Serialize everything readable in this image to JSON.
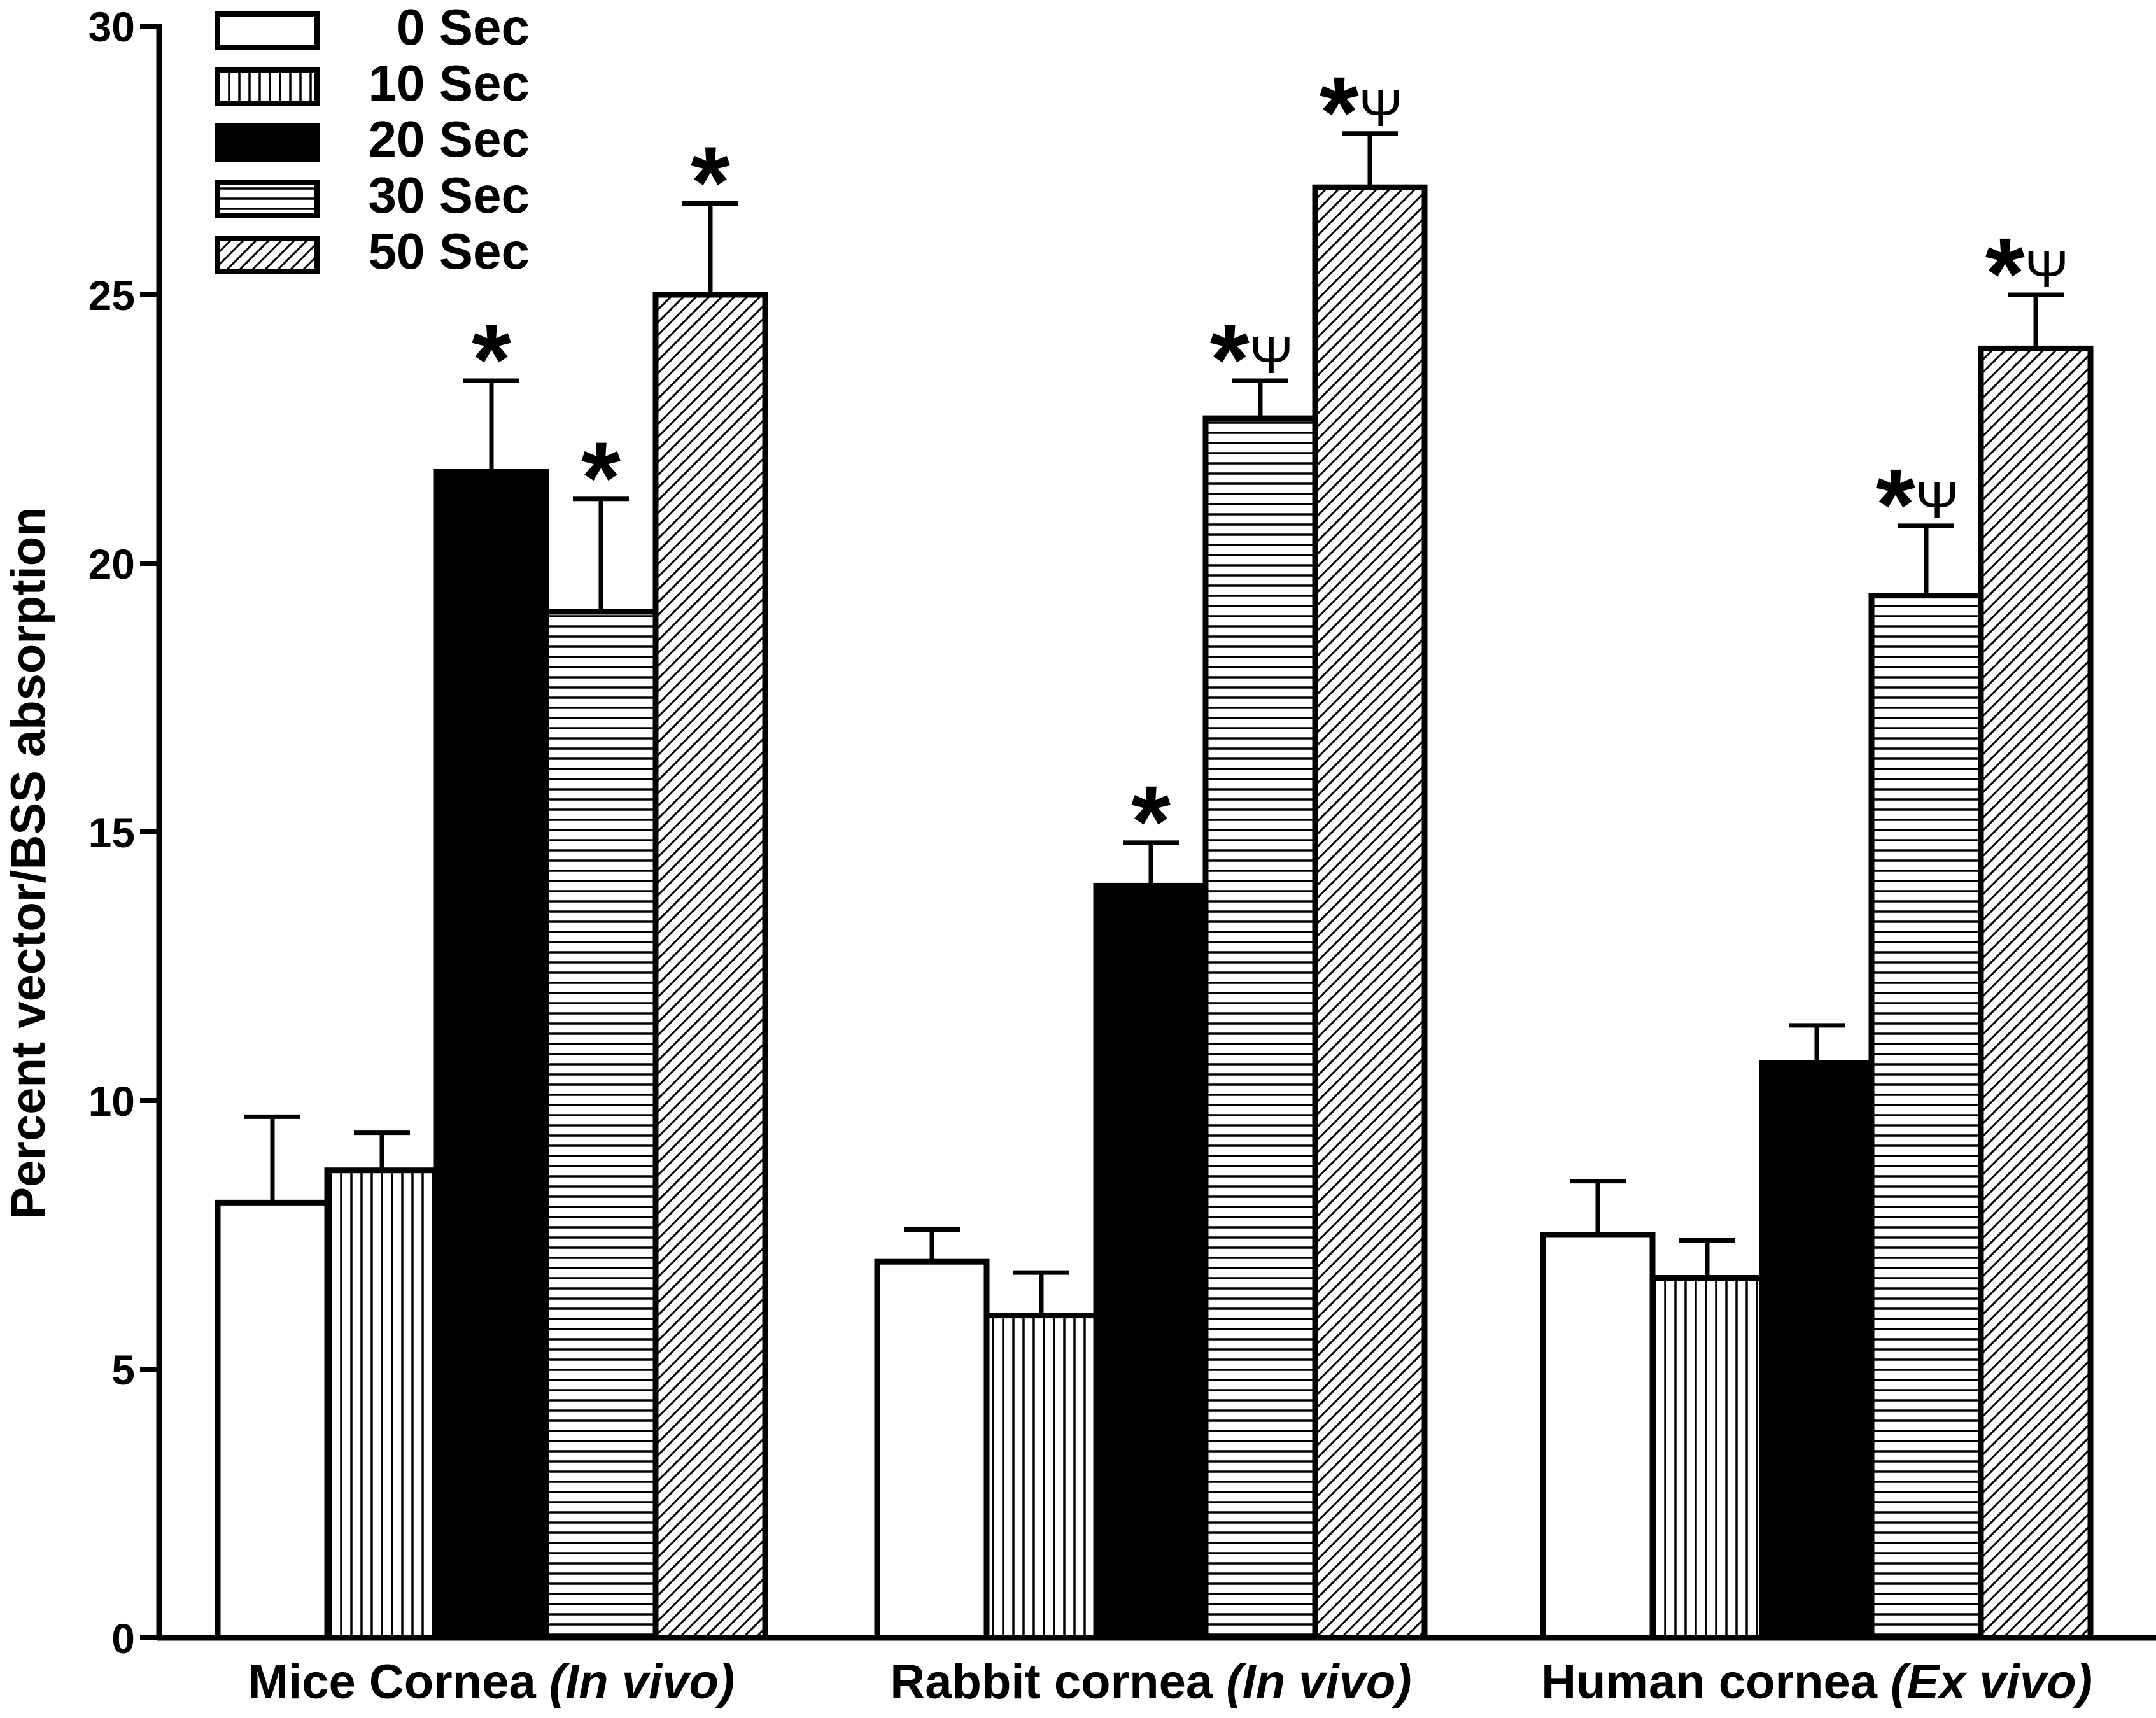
{
  "chart_data": {
    "type": "bar",
    "title": "",
    "xlabel": "",
    "ylabel": "Percent vector/BSS absorption",
    "ylim": [
      0,
      30
    ],
    "yticks": [
      "0",
      "5",
      "10",
      "15",
      "20",
      "25",
      "30"
    ],
    "grid": false,
    "legend_position": "top-left",
    "categories": [
      {
        "main": "Mice Cornea ",
        "italic": "(In vivo)"
      },
      {
        "main": "Rabbit cornea ",
        "italic": "(In vivo)"
      },
      {
        "main": "Human cornea ",
        "italic": "(Ex vivo)"
      }
    ],
    "series": [
      {
        "name": "0 Sec",
        "pattern": "open",
        "values": [
          8.1,
          7.0,
          7.5
        ],
        "errors": [
          1.6,
          0.6,
          1.0
        ],
        "annotations": [
          "",
          "",
          ""
        ]
      },
      {
        "name": "10 Sec",
        "pattern": "vertical-lines",
        "values": [
          8.7,
          6.0,
          6.7
        ],
        "errors": [
          0.7,
          0.8,
          0.7
        ],
        "annotations": [
          "",
          "",
          ""
        ]
      },
      {
        "name": "20 Sec",
        "pattern": "solid-black",
        "values": [
          21.7,
          14.0,
          10.7
        ],
        "errors": [
          1.7,
          0.8,
          0.7
        ],
        "annotations": [
          "*",
          "*",
          ""
        ]
      },
      {
        "name": "30 Sec",
        "pattern": "horizontal-lines",
        "values": [
          19.1,
          22.7,
          19.4
        ],
        "errors": [
          2.1,
          0.7,
          1.3
        ],
        "annotations": [
          "*",
          "*Ψ",
          "*Ψ"
        ]
      },
      {
        "name": "50 Sec",
        "pattern": "diagonal-lines",
        "values": [
          25.0,
          27.0,
          24.0
        ],
        "errors": [
          1.7,
          1.0,
          1.0
        ],
        "annotations": [
          "*",
          "*Ψ",
          "*Ψ"
        ]
      }
    ],
    "colors": {
      "axis": "#000000",
      "bar_stroke": "#000000",
      "background": "#ffffff"
    }
  }
}
